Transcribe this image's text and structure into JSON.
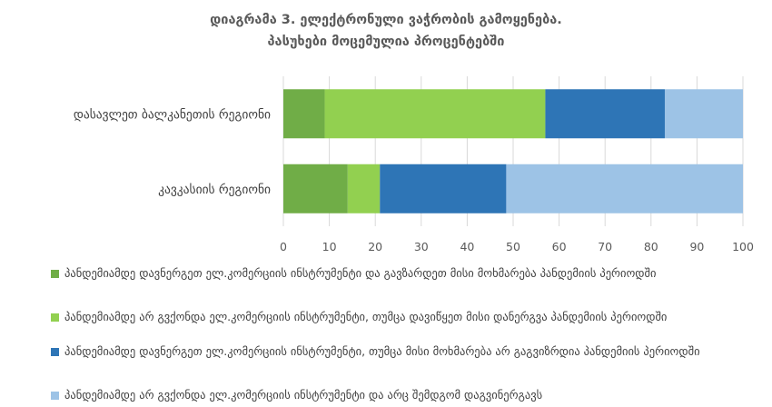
{
  "chart_data": {
    "type": "bar",
    "orientation": "horizontal",
    "stacked": true,
    "title": [
      "დიაგრამა 3. ელექტრონული ვაჭრობის გამოყენება.",
      "პასუხები მოცემულია პროცენტებში"
    ],
    "categories": [
      "დასავლეთ ბალკანეთის რეგიონი",
      "კავკასიის რეგიონი"
    ],
    "series": [
      {
        "name": "პანდემიამდე დავნერგეთ ელ.კომერციის ინსტრუმენტი და გავზარდეთ მისი მოხმარება პანდემიის პერიოდში",
        "values": [
          9,
          14
        ],
        "color": "#70ad47"
      },
      {
        "name": "პანდემიამდე არ გვქონდა ელ.კომერციის ინსტრუმენტი, თუმცა დავიწყეთ მისი დანერგვა პანდემიის პერიოდში",
        "values": [
          48,
          7
        ],
        "color": "#92d050"
      },
      {
        "name": "პანდემიამდე დავნერგეთ ელ.კომერციის ინსტრუმენტი, თუმცა მისი მოხმარება არ გაგვიზრდია პანდემიის პერიოდში",
        "values": [
          26,
          27.5
        ],
        "color": "#2e75b6"
      },
      {
        "name": "პანდემიამდე არ გვქონდა ელ.კომერციის ინსტრუმენტი და არც შემდგომ დაგვინერგავს",
        "values": [
          17,
          51.5
        ],
        "color": "#9dc3e6"
      }
    ],
    "xlim": [
      0,
      100
    ],
    "xticks": [
      0,
      10,
      20,
      30,
      40,
      50,
      60,
      70,
      80,
      90,
      100
    ],
    "grid": true,
    "legend_position": "bottom"
  }
}
